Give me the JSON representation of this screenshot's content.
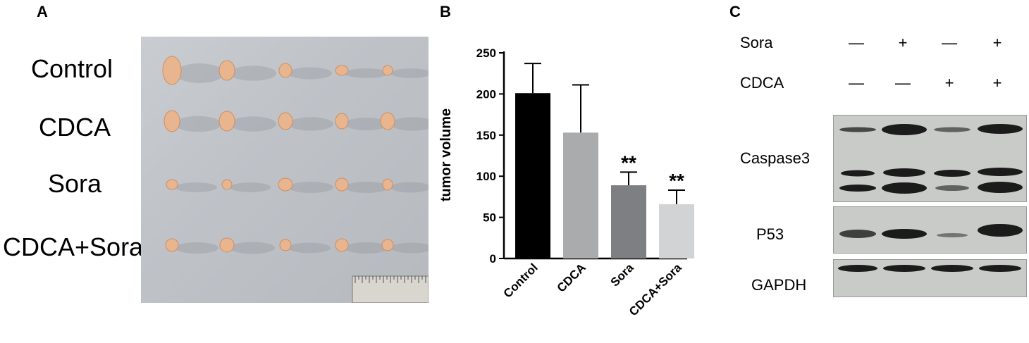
{
  "panels": {
    "a": "A",
    "b": "B",
    "c": "C"
  },
  "panel_a": {
    "rows": [
      {
        "label": "Control",
        "tumors": 5
      },
      {
        "label": "CDCA",
        "tumors": 5
      },
      {
        "label": "Sora",
        "tumors": 5
      },
      {
        "label": "CDCA+Sora",
        "tumors": 5
      }
    ],
    "colors": {
      "tumor": "#e9b58f",
      "background": "#c2c6cb"
    }
  },
  "chart_data": {
    "type": "bar",
    "categories": [
      "Control",
      "CDCA",
      "Sora",
      "CDCA+Sora"
    ],
    "values": [
      201,
      153,
      89,
      66
    ],
    "errors": [
      36,
      58,
      16,
      17
    ],
    "significance": [
      "",
      "",
      "**",
      "**"
    ],
    "ylabel": "tumor volume",
    "ylim": [
      0,
      250
    ],
    "yticks": [
      0,
      50,
      100,
      150,
      200,
      250
    ],
    "colors": [
      "#000000",
      "#a9abad",
      "#7d7f82",
      "#d2d3d4"
    ],
    "grid": false
  },
  "panel_c": {
    "treatments": [
      {
        "label": "Sora",
        "signs": [
          "—",
          "+",
          "—",
          "+"
        ]
      },
      {
        "label": "CDCA",
        "signs": [
          "—",
          "—",
          "+",
          "+"
        ]
      }
    ],
    "blots": [
      {
        "label": "Caspase3"
      },
      {
        "label": "P53"
      },
      {
        "label": "GAPDH"
      }
    ]
  }
}
